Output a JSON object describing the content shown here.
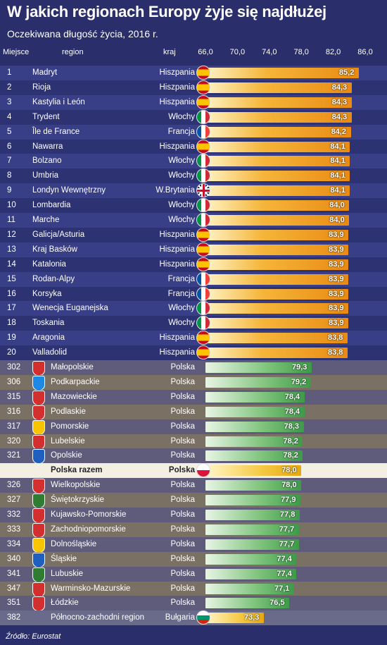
{
  "title": "W jakich regionach Europy żyje się najdłużej",
  "subtitle": "Oczekiwana długość życia, 2016 r.",
  "source": "Źródło: Eurostat",
  "columns": {
    "rank": "Miejsce",
    "region": "region",
    "country": "kraj"
  },
  "colors": {
    "background": "#2a2e6a",
    "europe_bar": "#f2a020",
    "poland_bar": "#7dc27a",
    "poland_total_bar": "#f5c842",
    "bulgaria_bar": "#f5c842"
  },
  "chart_data": {
    "type": "bar",
    "orientation": "horizontal",
    "title": "W jakich regionach Europy żyje się najdłużej",
    "subtitle": "Oczekiwana długość życia, 2016 r.",
    "xticks": [
      "66,0",
      "70,0",
      "74,0",
      "78,0",
      "82,0",
      "86,0"
    ],
    "xlim": [
      66,
      86
    ],
    "rows": [
      {
        "rank": "1",
        "region": "Madryt",
        "country": "Hiszpania",
        "value": 85.2,
        "label": "85,2",
        "group": "europe",
        "flag": "es"
      },
      {
        "rank": "2",
        "region": "Rioja",
        "country": "Hiszpania",
        "value": 84.3,
        "label": "84,3",
        "group": "europe",
        "flag": "es"
      },
      {
        "rank": "3",
        "region": "Kastylia i León",
        "country": "Hiszpania",
        "value": 84.3,
        "label": "84,3",
        "group": "europe",
        "flag": "es"
      },
      {
        "rank": "4",
        "region": "Trydent",
        "country": "Włochy",
        "value": 84.3,
        "label": "84,3",
        "group": "europe",
        "flag": "it"
      },
      {
        "rank": "5",
        "region": "Île de France",
        "country": "Francja",
        "value": 84.2,
        "label": "84,2",
        "group": "europe",
        "flag": "fr"
      },
      {
        "rank": "6",
        "region": "Nawarra",
        "country": "Hiszpania",
        "value": 84.1,
        "label": "84,1",
        "group": "europe",
        "flag": "es"
      },
      {
        "rank": "7",
        "region": "Bolzano",
        "country": "Włochy",
        "value": 84.1,
        "label": "84,1",
        "group": "europe",
        "flag": "it"
      },
      {
        "rank": "8",
        "region": "Umbria",
        "country": "Włochy",
        "value": 84.1,
        "label": "84,1",
        "group": "europe",
        "flag": "it"
      },
      {
        "rank": "9",
        "region": "Londyn Wewnętrzny",
        "country": "W.Brytania",
        "value": 84.1,
        "label": "84,1",
        "group": "europe",
        "flag": "gb"
      },
      {
        "rank": "10",
        "region": "Lombardia",
        "country": "Włochy",
        "value": 84.0,
        "label": "84,0",
        "group": "europe",
        "flag": "it"
      },
      {
        "rank": "11",
        "region": "Marche",
        "country": "Włochy",
        "value": 84.0,
        "label": "84,0",
        "group": "europe",
        "flag": "it"
      },
      {
        "rank": "12",
        "region": "Galicja/Asturia",
        "country": "Hiszpania",
        "value": 83.9,
        "label": "83,9",
        "group": "europe",
        "flag": "es"
      },
      {
        "rank": "13",
        "region": "Kraj Basków",
        "country": "Hiszpania",
        "value": 83.9,
        "label": "83,9",
        "group": "europe",
        "flag": "es"
      },
      {
        "rank": "14",
        "region": "Katalonia",
        "country": "Hiszpania",
        "value": 83.9,
        "label": "83,9",
        "group": "europe",
        "flag": "es"
      },
      {
        "rank": "15",
        "region": "Rodan-Alpy",
        "country": "Francja",
        "value": 83.9,
        "label": "83,9",
        "group": "europe",
        "flag": "fr"
      },
      {
        "rank": "16",
        "region": "Korsyka",
        "country": "Francja",
        "value": 83.9,
        "label": "83,9",
        "group": "europe",
        "flag": "fr"
      },
      {
        "rank": "17",
        "region": "Wenecja Euganejska",
        "country": "Włochy",
        "value": 83.9,
        "label": "83,9",
        "group": "europe",
        "flag": "it"
      },
      {
        "rank": "18",
        "region": "Toskania",
        "country": "Włochy",
        "value": 83.9,
        "label": "83,9",
        "group": "europe",
        "flag": "it"
      },
      {
        "rank": "19",
        "region": "Aragonia",
        "country": "Hiszpania",
        "value": 83.8,
        "label": "83,8",
        "group": "europe",
        "flag": "es"
      },
      {
        "rank": "20",
        "region": "Valladolid",
        "country": "Hiszpania",
        "value": 83.8,
        "label": "83,8",
        "group": "europe",
        "flag": "es"
      },
      {
        "rank": "302",
        "region": "Małopolskie",
        "country": "Polska",
        "value": 79.3,
        "label": "79,3",
        "group": "poland",
        "crest": "#d32f2f"
      },
      {
        "rank": "306",
        "region": "Podkarpackie",
        "country": "Polska",
        "value": 79.2,
        "label": "79,2",
        "group": "poland",
        "crest": "#1e88e5"
      },
      {
        "rank": "315",
        "region": "Mazowieckie",
        "country": "Polska",
        "value": 78.4,
        "label": "78,4",
        "group": "poland",
        "crest": "#d32f2f"
      },
      {
        "rank": "316",
        "region": "Podlaskie",
        "country": "Polska",
        "value": 78.4,
        "label": "78,4",
        "group": "poland",
        "crest": "#d32f2f"
      },
      {
        "rank": "317",
        "region": "Pomorskie",
        "country": "Polska",
        "value": 78.3,
        "label": "78,3",
        "group": "poland",
        "crest": "#f9c400"
      },
      {
        "rank": "320",
        "region": "Lubelskie",
        "country": "Polska",
        "value": 78.2,
        "label": "78,2",
        "group": "poland",
        "crest": "#d32f2f"
      },
      {
        "rank": "321",
        "region": "Opolskie",
        "country": "Polska",
        "value": 78.2,
        "label": "78,2",
        "group": "poland",
        "crest": "#1e5fbf"
      },
      {
        "rank": "",
        "region": "Polska razem",
        "country": "Polska",
        "value": 78.0,
        "label": "78,0",
        "group": "poland_total",
        "flag": "pl"
      },
      {
        "rank": "326",
        "region": "Wielkopolskie",
        "country": "Polska",
        "value": 78.0,
        "label": "78,0",
        "group": "poland",
        "crest": "#d32f2f"
      },
      {
        "rank": "327",
        "region": "Świętokrzyskie",
        "country": "Polska",
        "value": 77.9,
        "label": "77,9",
        "group": "poland",
        "crest": "#2e7d32"
      },
      {
        "rank": "332",
        "region": "Kujawsko-Pomorskie",
        "country": "Polska",
        "value": 77.8,
        "label": "77,8",
        "group": "poland",
        "crest": "#d32f2f"
      },
      {
        "rank": "333",
        "region": "Zachodniopomorskie",
        "country": "Polska",
        "value": 77.7,
        "label": "77,7",
        "group": "poland",
        "crest": "#d32f2f"
      },
      {
        "rank": "334",
        "region": "Dolnośląskie",
        "country": "Polska",
        "value": 77.7,
        "label": "77,7",
        "group": "poland",
        "crest": "#f9c400"
      },
      {
        "rank": "340",
        "region": "Śląskie",
        "country": "Polska",
        "value": 77.4,
        "label": "77,4",
        "group": "poland",
        "crest": "#1e5fbf"
      },
      {
        "rank": "341",
        "region": "Lubuskie",
        "country": "Polska",
        "value": 77.4,
        "label": "77,4",
        "group": "poland",
        "crest": "#2e7d32"
      },
      {
        "rank": "347",
        "region": "Warminsko-Mazurskie",
        "country": "Polska",
        "value": 77.1,
        "label": "77,1",
        "group": "poland",
        "crest": "#d32f2f"
      },
      {
        "rank": "351",
        "region": "Łódzkie",
        "country": "Polska",
        "value": 76.5,
        "label": "76,5",
        "group": "poland",
        "crest": "#d32f2f"
      },
      {
        "rank": "382",
        "region": "Północno-zachodni region",
        "country": "Bułgaria",
        "value": 73.3,
        "label": "73,3",
        "group": "bulgaria",
        "flag": "bg"
      }
    ]
  }
}
